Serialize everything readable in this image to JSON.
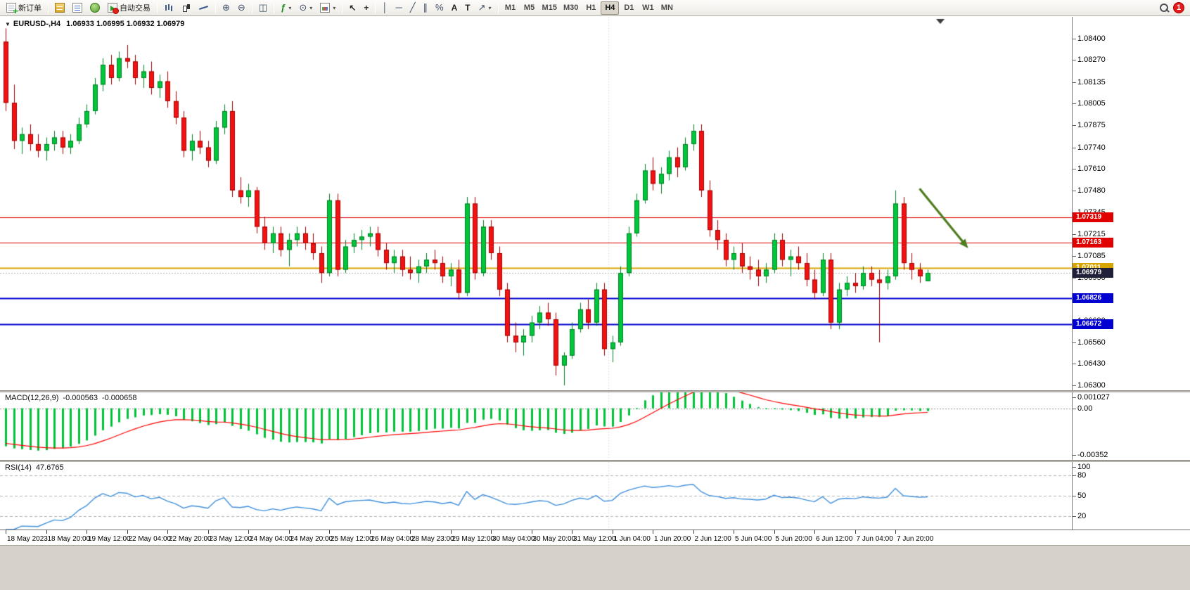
{
  "toolbar": {
    "new_order_label": "新订单",
    "autotrading_label": "自动交易",
    "timeframes": [
      "M1",
      "M5",
      "M15",
      "M30",
      "H1",
      "H4",
      "D1",
      "W1",
      "MN"
    ],
    "active_timeframe": "H4",
    "notification_count": "1"
  },
  "icons": {
    "chart_menu": "▼",
    "zoom_in": "⊕",
    "zoom_out": "⊖",
    "tile_windows": "◫",
    "indicators": "ƒ",
    "clock": "⊙",
    "cursor": "↖",
    "crosshair": "+",
    "vline": "│",
    "hline": "─",
    "trendline": "╱",
    "channel": "∥",
    "fibonacci": "%",
    "text": "A",
    "text_label": "T",
    "arrow_tool": "↗",
    "caret": "▾"
  },
  "chart": {
    "title_symbol": "EURUSD-,H4",
    "title_ohlc": "1.06933 1.06995 1.06932 1.06979"
  },
  "chart_data": {
    "type": "candlestick",
    "symbol": "EURUSD-",
    "timeframe": "H4",
    "ohlc_display": {
      "open": "1.06933",
      "high": "1.06995",
      "low": "1.06932",
      "close": "1.06979"
    },
    "price_scale_labels": [
      "1.08400",
      "1.08270",
      "1.08135",
      "1.08005",
      "1.07875",
      "1.07740",
      "1.07610",
      "1.07480",
      "1.07345",
      "1.07215",
      "1.07085",
      "1.06950",
      "1.06820",
      "1.06690",
      "1.06560",
      "1.06430",
      "1.06300"
    ],
    "time_labels": [
      "18 May 2023",
      "18 May 20:00",
      "19 May 12:00",
      "22 May 04:00",
      "22 May 20:00",
      "23 May 12:00",
      "24 May 04:00",
      "24 May 20:00",
      "25 May 12:00",
      "26 May 04:00",
      "28 May 23:00",
      "29 May 12:00",
      "30 May 04:00",
      "30 May 20:00",
      "31 May 12:00",
      "1 Jun 04:00",
      "1 Jun 20:00",
      "2 Jun 12:00",
      "5 Jun 04:00",
      "5 Jun 20:00",
      "6 Jun 12:00",
      "7 Jun 04:00",
      "7 Jun 20:00"
    ],
    "candles": [
      [
        1.0838,
        1.0846,
        1.0796,
        1.0801
      ],
      [
        1.0801,
        1.0812,
        1.0773,
        1.0778
      ],
      [
        1.0778,
        1.0786,
        1.077,
        1.0782
      ],
      [
        1.0782,
        1.0788,
        1.0772,
        1.0776
      ],
      [
        1.0776,
        1.0782,
        1.0768,
        1.0772
      ],
      [
        1.0772,
        1.078,
        1.0766,
        1.0776
      ],
      [
        1.0776,
        1.0784,
        1.0772,
        1.078
      ],
      [
        1.078,
        1.0784,
        1.077,
        1.0774
      ],
      [
        1.0774,
        1.0782,
        1.077,
        1.0778
      ],
      [
        1.0778,
        1.0792,
        1.0776,
        1.0788
      ],
      [
        1.0788,
        1.08,
        1.0786,
        1.0796
      ],
      [
        1.0796,
        1.0816,
        1.0794,
        1.0812
      ],
      [
        1.0812,
        1.0828,
        1.0808,
        1.0824
      ],
      [
        1.0824,
        1.083,
        1.0812,
        1.0816
      ],
      [
        1.0816,
        1.0832,
        1.0814,
        1.0828
      ],
      [
        1.0828,
        1.0836,
        1.0822,
        1.0826
      ],
      [
        1.0826,
        1.083,
        1.0812,
        1.0816
      ],
      [
        1.0816,
        1.0824,
        1.081,
        1.082
      ],
      [
        1.082,
        1.0826,
        1.0806,
        1.081
      ],
      [
        1.081,
        1.0818,
        1.0804,
        1.0814
      ],
      [
        1.0814,
        1.082,
        1.0798,
        1.0802
      ],
      [
        1.0802,
        1.0808,
        1.0788,
        1.0792
      ],
      [
        1.0792,
        1.0796,
        1.0768,
        1.0772
      ],
      [
        1.0772,
        1.0782,
        1.0766,
        1.0778
      ],
      [
        1.0778,
        1.0784,
        1.077,
        1.0774
      ],
      [
        1.0774,
        1.0778,
        1.0762,
        1.0766
      ],
      [
        1.0766,
        1.079,
        1.0764,
        1.0786
      ],
      [
        1.0786,
        1.08,
        1.0782,
        1.0796
      ],
      [
        1.0796,
        1.0802,
        1.0744,
        1.0748
      ],
      [
        1.0748,
        1.0756,
        1.074,
        1.0744
      ],
      [
        1.0744,
        1.0752,
        1.0738,
        1.0748
      ],
      [
        1.0748,
        1.075,
        1.0722,
        1.0726
      ],
      [
        1.0726,
        1.0732,
        1.0712,
        1.0716
      ],
      [
        1.0716,
        1.0726,
        1.071,
        1.0722
      ],
      [
        1.0722,
        1.0726,
        1.0708,
        1.0712
      ],
      [
        1.0712,
        1.0722,
        1.0702,
        1.0718
      ],
      [
        1.0718,
        1.0726,
        1.0714,
        1.0722
      ],
      [
        1.0722,
        1.0726,
        1.0712,
        1.0716
      ],
      [
        1.0716,
        1.0722,
        1.0706,
        1.071
      ],
      [
        1.071,
        1.0714,
        1.0692,
        1.0698
      ],
      [
        1.0698,
        1.0746,
        1.0696,
        1.0742
      ],
      [
        1.0742,
        1.0746,
        1.0696,
        1.07
      ],
      [
        1.07,
        1.0718,
        1.0698,
        1.0714
      ],
      [
        1.0714,
        1.0722,
        1.071,
        1.0718
      ],
      [
        1.0718,
        1.0724,
        1.0712,
        1.072
      ],
      [
        1.072,
        1.0726,
        1.0714,
        1.0722
      ],
      [
        1.0722,
        1.0726,
        1.0708,
        1.0712
      ],
      [
        1.0712,
        1.0716,
        1.07,
        1.0704
      ],
      [
        1.0704,
        1.0712,
        1.0698,
        1.0708
      ],
      [
        1.0708,
        1.0712,
        1.0696,
        1.07
      ],
      [
        1.07,
        1.0708,
        1.0694,
        1.0698
      ],
      [
        1.0698,
        1.0706,
        1.0692,
        1.0702
      ],
      [
        1.0702,
        1.071,
        1.0698,
        1.0706
      ],
      [
        1.0706,
        1.0712,
        1.07,
        1.0704
      ],
      [
        1.0704,
        1.0708,
        1.0692,
        1.0696
      ],
      [
        1.0696,
        1.0704,
        1.069,
        1.07
      ],
      [
        1.07,
        1.0706,
        1.0682,
        1.0686
      ],
      [
        1.0686,
        1.0744,
        1.0684,
        1.074
      ],
      [
        1.074,
        1.0744,
        1.0694,
        1.0698
      ],
      [
        1.0698,
        1.073,
        1.0696,
        1.0726
      ],
      [
        1.0726,
        1.073,
        1.0706,
        1.071
      ],
      [
        1.071,
        1.0714,
        1.0684,
        1.0688
      ],
      [
        1.0688,
        1.0692,
        1.0656,
        1.066
      ],
      [
        1.066,
        1.0668,
        1.065,
        1.0656
      ],
      [
        1.0656,
        1.0664,
        1.0648,
        1.066
      ],
      [
        1.066,
        1.0672,
        1.0656,
        1.0668
      ],
      [
        1.0668,
        1.0678,
        1.0664,
        1.0674
      ],
      [
        1.0674,
        1.068,
        1.0666,
        1.067
      ],
      [
        1.067,
        1.0674,
        1.0636,
        1.0642
      ],
      [
        1.0642,
        1.065,
        1.063,
        1.0648
      ],
      [
        1.0648,
        1.0668,
        1.0646,
        1.0664
      ],
      [
        1.0664,
        1.068,
        1.0662,
        1.0676
      ],
      [
        1.0676,
        1.0682,
        1.0664,
        1.0668
      ],
      [
        1.0668,
        1.0692,
        1.0666,
        1.0688
      ],
      [
        1.0688,
        1.0692,
        1.0648,
        1.0652
      ],
      [
        1.0652,
        1.066,
        1.0644,
        1.0656
      ],
      [
        1.0656,
        1.0702,
        1.0654,
        1.0698
      ],
      [
        1.0698,
        1.0726,
        1.0696,
        1.0722
      ],
      [
        1.0722,
        1.0746,
        1.072,
        1.0742
      ],
      [
        1.0742,
        1.0764,
        1.074,
        1.076
      ],
      [
        1.076,
        1.0768,
        1.0748,
        1.0752
      ],
      [
        1.0752,
        1.0762,
        1.0746,
        1.0758
      ],
      [
        1.0758,
        1.0772,
        1.0754,
        1.0768
      ],
      [
        1.0768,
        1.0774,
        1.0756,
        1.0762
      ],
      [
        1.0762,
        1.078,
        1.076,
        1.0776
      ],
      [
        1.0776,
        1.0788,
        1.0772,
        1.0784
      ],
      [
        1.0784,
        1.0788,
        1.0744,
        1.0748
      ],
      [
        1.0748,
        1.0754,
        1.072,
        1.0724
      ],
      [
        1.0724,
        1.073,
        1.0712,
        1.0718
      ],
      [
        1.0718,
        1.0722,
        1.0702,
        1.0706
      ],
      [
        1.0706,
        1.0714,
        1.07,
        1.071
      ],
      [
        1.071,
        1.0716,
        1.0698,
        1.0702
      ],
      [
        1.0702,
        1.0708,
        1.0694,
        1.07
      ],
      [
        1.07,
        1.0706,
        1.069,
        1.0696
      ],
      [
        1.0696,
        1.0704,
        1.0692,
        1.07
      ],
      [
        1.07,
        1.0722,
        1.0698,
        1.0718
      ],
      [
        1.0718,
        1.0722,
        1.0702,
        1.0706
      ],
      [
        1.0706,
        1.0712,
        1.0696,
        1.0708
      ],
      [
        1.0708,
        1.0714,
        1.07,
        1.0704
      ],
      [
        1.0704,
        1.071,
        1.069,
        1.0694
      ],
      [
        1.0694,
        1.07,
        1.0682,
        1.0686
      ],
      [
        1.0686,
        1.071,
        1.0684,
        1.0706
      ],
      [
        1.0706,
        1.071,
        1.0664,
        1.0668
      ],
      [
        1.0668,
        1.0692,
        1.0664,
        1.0688
      ],
      [
        1.0688,
        1.0696,
        1.0684,
        1.0692
      ],
      [
        1.0692,
        1.0698,
        1.0686,
        1.069
      ],
      [
        1.069,
        1.0702,
        1.0688,
        1.0698
      ],
      [
        1.0698,
        1.0702,
        1.069,
        1.0694
      ],
      [
        1.0694,
        1.07,
        1.0656,
        1.0692
      ],
      [
        1.0692,
        1.07,
        1.0688,
        1.0696
      ],
      [
        1.0696,
        1.0748,
        1.0694,
        1.074
      ],
      [
        1.074,
        1.0744,
        1.07,
        1.0704
      ],
      [
        1.0704,
        1.071,
        1.0694,
        1.07
      ],
      [
        1.07,
        1.0704,
        1.0692,
        1.0696
      ],
      [
        1.0693,
        1.07,
        1.0693,
        1.0698
      ]
    ],
    "levels": [
      {
        "name": "resistance-line-1",
        "price": 1.07319,
        "label": "1.07319",
        "color": "#e00000",
        "style": "solid",
        "width": 1
      },
      {
        "name": "resistance-line-2",
        "price": 1.07163,
        "label": "1.07163",
        "color": "#e00000",
        "style": "solid",
        "width": 1
      },
      {
        "name": "pivot-line",
        "price": 1.07011,
        "label": "1.07011",
        "color": "#d8a400",
        "style": "solid",
        "width": 2
      },
      {
        "name": "current-price",
        "price": 1.06979,
        "label": "1.06979",
        "color": "#20203a",
        "style": "dotted",
        "width": 1
      },
      {
        "name": "support-line-1",
        "price": 1.06826,
        "label": "1.06826",
        "color": "#0000d0",
        "style": "solid",
        "width": 2
      },
      {
        "name": "support-line-2",
        "price": 1.06672,
        "label": "1.06672",
        "color": "#0000d0",
        "style": "solid",
        "width": 2
      }
    ],
    "arrow_annotation": {
      "from_bar": 113,
      "from_price": 1.0749,
      "to_bar": 119,
      "to_price": 1.0713,
      "color": "#4e7c1f"
    },
    "macd": {
      "label": "MACD(12,26,9)",
      "value_main": "-0.000563",
      "value_signal": "-0.000658",
      "params": [
        12,
        26,
        9
      ],
      "scale_labels": {
        "top": "0.001027",
        "zero": "0.00",
        "bottom": "-0.00352"
      },
      "range": [
        -0.00375,
        0.00115
      ],
      "hist_color": "#00c33a",
      "signal_color": "#ff0000"
    },
    "rsi": {
      "label": "RSI(14)",
      "value": "47.6765",
      "period": 14,
      "levels": [
        80,
        50,
        20
      ],
      "scale_labels": [
        "100",
        "80",
        "50",
        "20"
      ],
      "range": [
        0,
        100
      ],
      "line_color": "#3f8fdc"
    },
    "colors": {
      "up": "#00c63a",
      "up_border": "#007d24",
      "down": "#f31212",
      "down_border": "#9e0000",
      "background": "#ffffff"
    },
    "x_axis": {
      "month_separator_bar": 74.5,
      "bars_per_label": 5
    }
  }
}
